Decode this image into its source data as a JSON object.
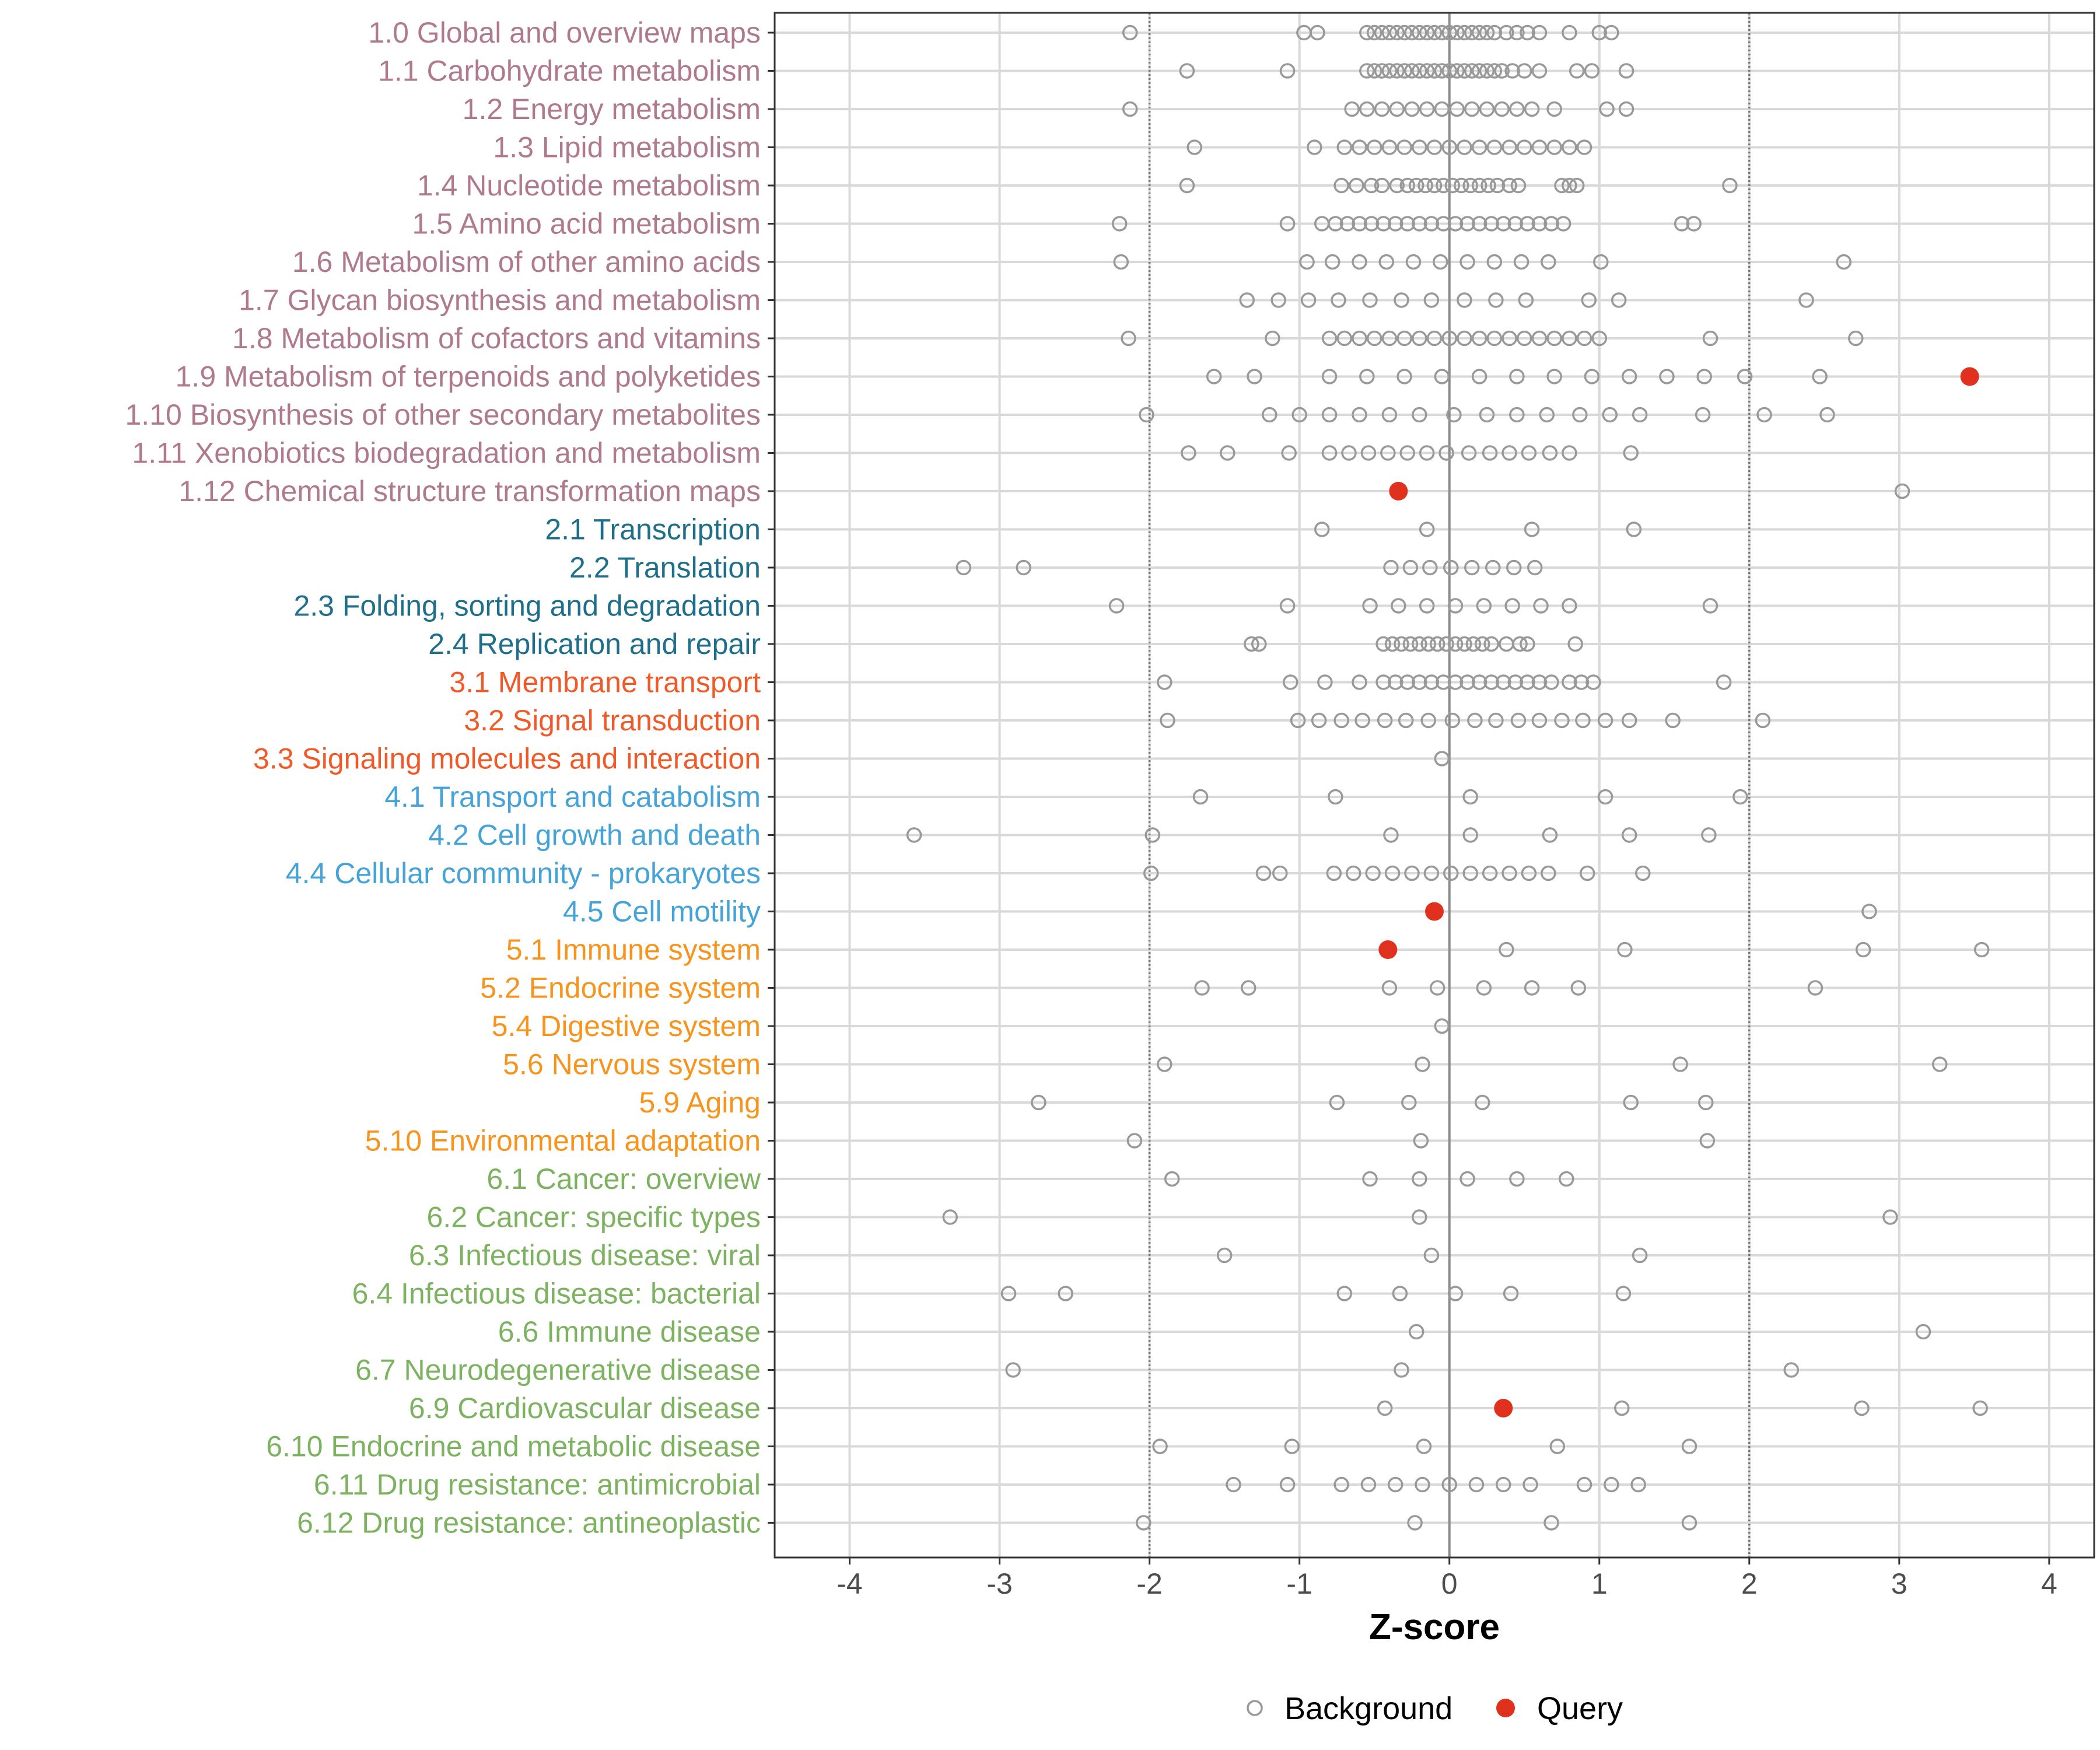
{
  "chart_data": {
    "type": "scatter",
    "xlabel": "Z-score",
    "xlim": [
      -4.5,
      4.3
    ],
    "x_ticks": [
      -4,
      -3,
      -2,
      -1,
      0,
      1,
      2,
      3,
      4
    ],
    "x_tick_labels": [
      "-4",
      "-3",
      "-2",
      "-1",
      "0",
      "1",
      "2",
      "3",
      "4"
    ],
    "reference_lines": [
      {
        "x": -2,
        "style": "dotted"
      },
      {
        "x": 0,
        "style": "solid"
      },
      {
        "x": 2,
        "style": "dotted"
      }
    ],
    "legend": {
      "position": "bottom",
      "entries": [
        {
          "name": "Background",
          "marker": "open-circle",
          "color": "#999999"
        },
        {
          "name": "Query",
          "marker": "filled-circle",
          "color": "#e0301e"
        }
      ]
    },
    "group_colors": {
      "1": "#b07a8e",
      "2": "#1f6f8b",
      "3": "#f05a28",
      "4": "#45a3d8",
      "5": "#f7941d",
      "6": "#7db360"
    },
    "categories": [
      {
        "label": "1.0 Global and overview maps",
        "group": "1",
        "background": [
          -2.13,
          -0.97,
          -0.88,
          -0.55,
          -0.5,
          -0.45,
          -0.4,
          -0.35,
          -0.3,
          -0.25,
          -0.2,
          -0.15,
          -0.1,
          -0.05,
          0.0,
          0.05,
          0.1,
          0.15,
          0.2,
          0.25,
          0.3,
          0.38,
          0.45,
          0.52,
          0.6,
          0.8,
          1.0,
          1.08
        ],
        "query": []
      },
      {
        "label": "1.1 Carbohydrate metabolism",
        "group": "1",
        "background": [
          -1.75,
          -1.08,
          -0.55,
          -0.5,
          -0.45,
          -0.4,
          -0.35,
          -0.3,
          -0.25,
          -0.2,
          -0.15,
          -0.1,
          -0.05,
          0.0,
          0.05,
          0.1,
          0.15,
          0.2,
          0.25,
          0.3,
          0.35,
          0.42,
          0.5,
          0.6,
          0.85,
          0.95,
          1.18
        ],
        "query": []
      },
      {
        "label": "1.2 Energy metabolism",
        "group": "1",
        "background": [
          -2.13,
          -0.65,
          -0.55,
          -0.45,
          -0.35,
          -0.25,
          -0.15,
          -0.05,
          0.05,
          0.15,
          0.25,
          0.35,
          0.45,
          0.55,
          0.7,
          1.05,
          1.18
        ],
        "query": []
      },
      {
        "label": "1.3 Lipid metabolism",
        "group": "1",
        "background": [
          -1.7,
          -0.9,
          -0.7,
          -0.6,
          -0.5,
          -0.4,
          -0.3,
          -0.2,
          -0.1,
          0.0,
          0.1,
          0.2,
          0.3,
          0.4,
          0.5,
          0.6,
          0.7,
          0.8,
          0.9
        ],
        "query": []
      },
      {
        "label": "1.4 Nucleotide metabolism",
        "group": "1",
        "background": [
          -1.75,
          -0.72,
          -0.62,
          -0.52,
          -0.45,
          -0.35,
          -0.28,
          -0.22,
          -0.16,
          -0.1,
          -0.04,
          0.02,
          0.08,
          0.14,
          0.2,
          0.26,
          0.32,
          0.4,
          0.46,
          0.75,
          0.8,
          0.85,
          1.87
        ],
        "query": []
      },
      {
        "label": "1.5 Amino acid metabolism",
        "group": "1",
        "background": [
          -2.2,
          -1.08,
          -0.85,
          -0.76,
          -0.68,
          -0.6,
          -0.52,
          -0.44,
          -0.36,
          -0.28,
          -0.2,
          -0.12,
          -0.04,
          0.04,
          0.12,
          0.2,
          0.28,
          0.36,
          0.44,
          0.52,
          0.6,
          0.68,
          0.76,
          1.55,
          1.63
        ],
        "query": []
      },
      {
        "label": "1.6 Metabolism of other amino acids",
        "group": "1",
        "background": [
          -2.19,
          -0.95,
          -0.78,
          -0.6,
          -0.42,
          -0.24,
          -0.06,
          0.12,
          0.3,
          0.48,
          0.66,
          1.01,
          2.63
        ],
        "query": []
      },
      {
        "label": "1.7 Glycan biosynthesis and metabolism",
        "group": "1",
        "background": [
          -1.35,
          -1.14,
          -0.94,
          -0.74,
          -0.53,
          -0.32,
          -0.12,
          0.1,
          0.31,
          0.51,
          0.93,
          1.13,
          2.38
        ],
        "query": []
      },
      {
        "label": "1.8 Metabolism of cofactors and vitamins",
        "group": "1",
        "background": [
          -2.14,
          -1.18,
          -0.8,
          -0.7,
          -0.6,
          -0.5,
          -0.4,
          -0.3,
          -0.2,
          -0.1,
          0.0,
          0.1,
          0.2,
          0.3,
          0.4,
          0.5,
          0.6,
          0.7,
          0.8,
          0.9,
          1.0,
          1.74,
          2.71
        ],
        "query": []
      },
      {
        "label": "1.9 Metabolism of terpenoids and polyketides",
        "group": "1",
        "background": [
          -1.57,
          -1.3,
          -0.8,
          -0.55,
          -0.3,
          -0.05,
          0.2,
          0.45,
          0.7,
          0.95,
          1.2,
          1.45,
          1.7,
          1.97,
          2.47
        ],
        "query": [
          3.47
        ]
      },
      {
        "label": "1.10 Biosynthesis of other secondary metabolites",
        "group": "1",
        "background": [
          -2.02,
          -1.2,
          -1.0,
          -0.8,
          -0.6,
          -0.4,
          -0.2,
          0.03,
          0.25,
          0.45,
          0.65,
          0.87,
          1.07,
          1.27,
          1.69,
          2.1,
          2.52
        ],
        "query": []
      },
      {
        "label": "1.11 Xenobiotics biodegradation and metabolism",
        "group": "1",
        "background": [
          -1.74,
          -1.48,
          -1.07,
          -0.8,
          -0.67,
          -0.54,
          -0.41,
          -0.28,
          -0.15,
          -0.02,
          0.13,
          0.27,
          0.4,
          0.53,
          0.67,
          0.8,
          1.21
        ],
        "query": []
      },
      {
        "label": "1.12 Chemical structure transformation maps",
        "group": "1",
        "background": [
          3.02
        ],
        "query": [
          -0.34
        ]
      },
      {
        "label": "2.1 Transcription",
        "group": "2",
        "background": [
          -0.85,
          -0.15,
          0.55,
          1.23
        ],
        "query": []
      },
      {
        "label": "2.2 Translation",
        "group": "2",
        "background": [
          -3.24,
          -2.84,
          -0.39,
          -0.26,
          -0.13,
          0.01,
          0.15,
          0.29,
          0.43,
          0.57
        ],
        "query": []
      },
      {
        "label": "2.3 Folding, sorting and degradation",
        "group": "2",
        "background": [
          -2.22,
          -1.08,
          -0.53,
          -0.34,
          -0.15,
          0.04,
          0.23,
          0.42,
          0.61,
          0.8,
          1.74
        ],
        "query": []
      },
      {
        "label": "2.4 Replication and repair",
        "group": "2",
        "background": [
          -1.32,
          -1.27,
          -0.44,
          -0.38,
          -0.32,
          -0.26,
          -0.2,
          -0.14,
          -0.08,
          -0.02,
          0.04,
          0.1,
          0.16,
          0.22,
          0.28,
          0.38,
          0.47,
          0.52,
          0.84
        ],
        "query": []
      },
      {
        "label": "3.1 Membrane transport",
        "group": "3",
        "background": [
          -1.9,
          -1.06,
          -0.83,
          -0.6,
          -0.44,
          -0.36,
          -0.28,
          -0.2,
          -0.12,
          -0.04,
          0.04,
          0.12,
          0.2,
          0.28,
          0.36,
          0.44,
          0.52,
          0.6,
          0.68,
          0.8,
          0.88,
          0.96,
          1.83
        ],
        "query": []
      },
      {
        "label": "3.2 Signal transduction",
        "group": "3",
        "background": [
          -1.88,
          -1.01,
          -0.87,
          -0.72,
          -0.58,
          -0.43,
          -0.29,
          -0.14,
          0.02,
          0.17,
          0.31,
          0.46,
          0.6,
          0.75,
          0.89,
          1.04,
          1.2,
          1.49,
          2.09
        ],
        "query": []
      },
      {
        "label": "3.3 Signaling molecules and interaction",
        "group": "3",
        "background": [
          -0.05
        ],
        "query": []
      },
      {
        "label": "4.1 Transport and catabolism",
        "group": "4",
        "background": [
          -1.66,
          -0.76,
          0.14,
          1.04,
          1.94
        ],
        "query": []
      },
      {
        "label": "4.2 Cell growth and death",
        "group": "4",
        "background": [
          -3.57,
          -1.98,
          -0.39,
          0.14,
          0.67,
          1.2,
          1.73
        ],
        "query": []
      },
      {
        "label": "4.4 Cellular community - prokaryotes",
        "group": "4",
        "background": [
          -1.99,
          -1.24,
          -1.13,
          -0.77,
          -0.64,
          -0.51,
          -0.38,
          -0.25,
          -0.12,
          0.01,
          0.14,
          0.27,
          0.4,
          0.53,
          0.66,
          0.92,
          1.29
        ],
        "query": []
      },
      {
        "label": "4.5 Cell motility",
        "group": "4",
        "background": [
          2.8
        ],
        "query": [
          -0.1
        ]
      },
      {
        "label": "5.1 Immune system",
        "group": "5",
        "background": [
          0.38,
          1.17,
          2.76,
          3.55
        ],
        "query": [
          -0.41
        ]
      },
      {
        "label": "5.2 Endocrine system",
        "group": "5",
        "background": [
          -1.65,
          -1.34,
          -0.4,
          -0.08,
          0.23,
          0.55,
          0.86,
          2.44
        ],
        "query": []
      },
      {
        "label": "5.4 Digestive system",
        "group": "5",
        "background": [
          -0.05
        ],
        "query": []
      },
      {
        "label": "5.6 Nervous system",
        "group": "5",
        "background": [
          -1.9,
          -0.18,
          1.54,
          3.27
        ],
        "query": []
      },
      {
        "label": "5.9 Aging",
        "group": "5",
        "background": [
          -2.74,
          -0.75,
          -0.27,
          0.22,
          1.21,
          1.71
        ],
        "query": []
      },
      {
        "label": "5.10 Environmental adaptation",
        "group": "5",
        "background": [
          -2.1,
          -0.19,
          1.72
        ],
        "query": []
      },
      {
        "label": "6.1 Cancer: overview",
        "group": "6",
        "background": [
          -1.85,
          -0.53,
          -0.2,
          0.12,
          0.45,
          0.78
        ],
        "query": []
      },
      {
        "label": "6.2 Cancer: specific types",
        "group": "6",
        "background": [
          -3.33,
          -0.2,
          2.94
        ],
        "query": []
      },
      {
        "label": "6.3 Infectious disease: viral",
        "group": "6",
        "background": [
          -1.5,
          -0.12,
          1.27
        ],
        "query": []
      },
      {
        "label": "6.4 Infectious disease: bacterial",
        "group": "6",
        "background": [
          -2.94,
          -2.56,
          -0.7,
          -0.33,
          0.04,
          0.41,
          1.16
        ],
        "query": []
      },
      {
        "label": "6.6 Immune disease",
        "group": "6",
        "background": [
          -0.22,
          3.16
        ],
        "query": []
      },
      {
        "label": "6.7 Neurodegenerative disease",
        "group": "6",
        "background": [
          -2.91,
          -0.32,
          2.28
        ],
        "query": []
      },
      {
        "label": "6.9 Cardiovascular disease",
        "group": "6",
        "background": [
          -0.43,
          1.15,
          2.75,
          3.54
        ],
        "query": [
          0.36
        ]
      },
      {
        "label": "6.10 Endocrine and metabolic disease",
        "group": "6",
        "background": [
          -1.93,
          -1.05,
          -0.17,
          0.72,
          1.6
        ],
        "query": []
      },
      {
        "label": "6.11 Drug resistance: antimicrobial",
        "group": "6",
        "background": [
          -1.44,
          -1.08,
          -0.72,
          -0.54,
          -0.36,
          -0.18,
          0.0,
          0.18,
          0.36,
          0.54,
          0.9,
          1.08,
          1.26
        ],
        "query": []
      },
      {
        "label": "6.12 Drug resistance: antineoplastic",
        "group": "6",
        "background": [
          -2.04,
          -0.23,
          0.68,
          1.6
        ],
        "query": []
      }
    ]
  }
}
